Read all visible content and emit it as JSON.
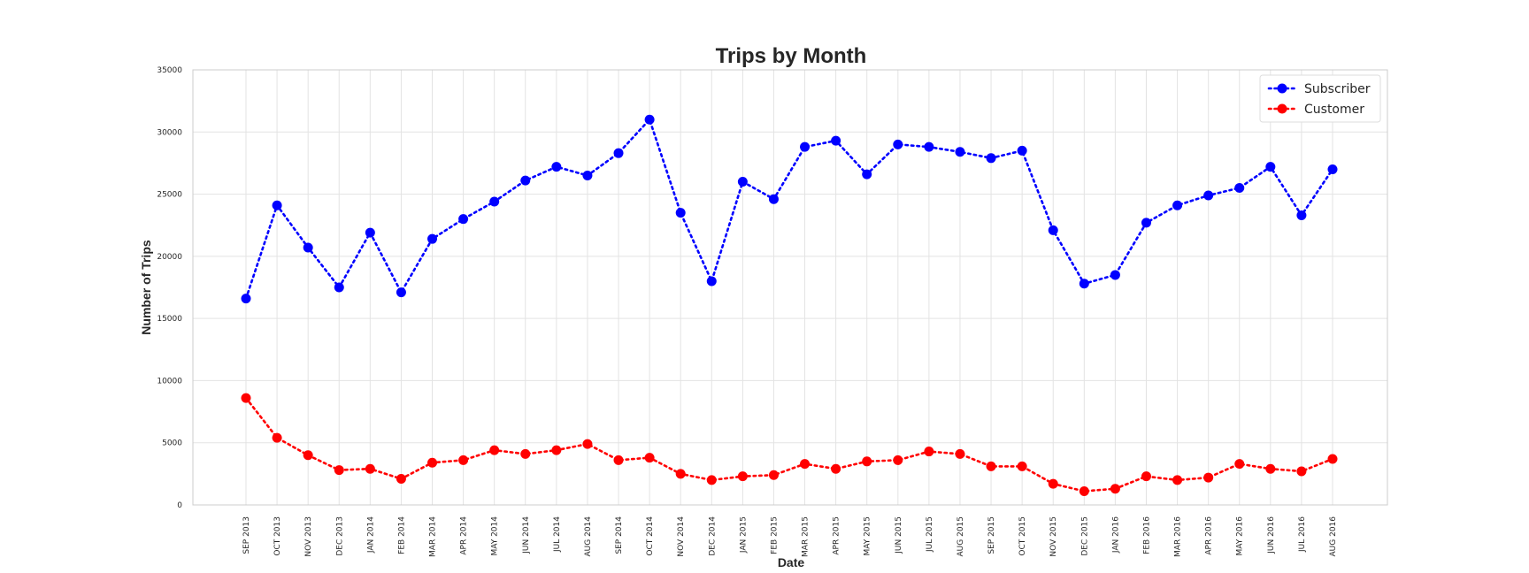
{
  "chart_data": {
    "type": "line",
    "title": "Trips by Month",
    "xlabel": "Date",
    "ylabel": "Number of Trips",
    "ylim": [
      0,
      35000
    ],
    "yticks": [
      0,
      5000,
      10000,
      15000,
      20000,
      25000,
      30000,
      35000
    ],
    "grid": true,
    "legend_position": "top-right",
    "categories": [
      "SEP 2013",
      "OCT 2013",
      "NOV 2013",
      "DEC 2013",
      "JAN 2014",
      "FEB 2014",
      "MAR 2014",
      "APR 2014",
      "MAY 2014",
      "JUN 2014",
      "JUL 2014",
      "AUG 2014",
      "SEP 2014",
      "OCT 2014",
      "NOV 2014",
      "DEC 2014",
      "JAN 2015",
      "FEB 2015",
      "MAR 2015",
      "APR 2015",
      "MAY 2015",
      "JUN 2015",
      "JUL 2015",
      "AUG 2015",
      "SEP 2015",
      "OCT 2015",
      "NOV 2015",
      "DEC 2015",
      "JAN 2016",
      "FEB 2016",
      "MAR 2016",
      "APR 2016",
      "MAY 2016",
      "JUN 2016",
      "JUL 2016",
      "AUG 2016"
    ],
    "series": [
      {
        "name": "Subscriber",
        "color": "#0000ff",
        "line_style": "dotted",
        "marker": "circle",
        "values": [
          16600,
          24100,
          20700,
          17500,
          21900,
          17100,
          21400,
          23000,
          24400,
          26100,
          27200,
          26500,
          28300,
          31000,
          23500,
          18000,
          26000,
          24600,
          28800,
          29300,
          26600,
          29000,
          28800,
          28400,
          27900,
          28500,
          22100,
          17800,
          18500,
          22700,
          24100,
          24900,
          25500,
          27200,
          23300,
          27000
        ]
      },
      {
        "name": "Customer",
        "color": "#ff0000",
        "line_style": "dotted",
        "marker": "circle",
        "values": [
          8600,
          5400,
          4000,
          2800,
          2900,
          2100,
          3400,
          3600,
          4400,
          4100,
          4400,
          4900,
          3600,
          3800,
          2500,
          2000,
          2300,
          2400,
          3300,
          2900,
          3500,
          3600,
          4300,
          4100,
          3100,
          3100,
          1700,
          1100,
          1300,
          2300,
          2000,
          2200,
          3300,
          2900,
          2700,
          3700
        ]
      }
    ]
  }
}
